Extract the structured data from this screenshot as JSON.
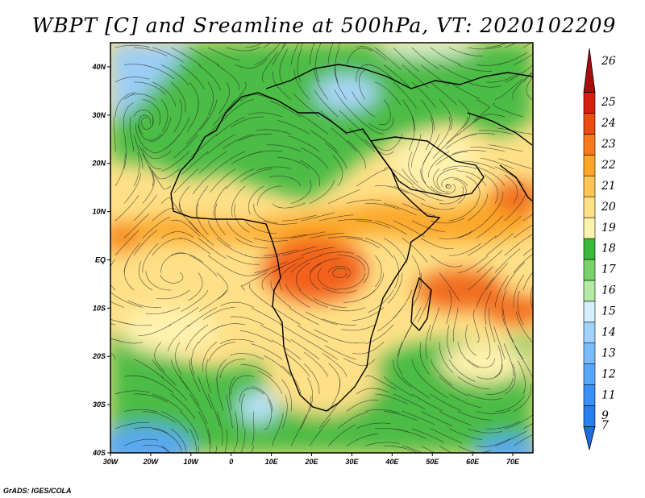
{
  "title": "WBPT [C] and Sreamline at 500hPa, VT: 2020102209",
  "credit": "GrADS: IGES/COLA",
  "map": {
    "lon_range": [
      -30,
      75
    ],
    "lat_range": [
      -40,
      45
    ],
    "lon_ticks": [
      {
        "value": -30,
        "label": "30W"
      },
      {
        "value": -20,
        "label": "20W"
      },
      {
        "value": -10,
        "label": "10W"
      },
      {
        "value": 0,
        "label": "0"
      },
      {
        "value": 10,
        "label": "10E"
      },
      {
        "value": 20,
        "label": "20E"
      },
      {
        "value": 30,
        "label": "30E"
      },
      {
        "value": 40,
        "label": "40E"
      },
      {
        "value": 50,
        "label": "50E"
      },
      {
        "value": 60,
        "label": "60E"
      },
      {
        "value": 70,
        "label": "70E"
      }
    ],
    "lat_ticks": [
      {
        "value": 40,
        "label": "40N"
      },
      {
        "value": 30,
        "label": "30N"
      },
      {
        "value": 20,
        "label": "20N"
      },
      {
        "value": 10,
        "label": "10N"
      },
      {
        "value": 0,
        "label": "EQ"
      },
      {
        "value": -10,
        "label": "10S"
      },
      {
        "value": -20,
        "label": "20S"
      },
      {
        "value": -30,
        "label": "30S"
      },
      {
        "value": -40,
        "label": "40S"
      }
    ]
  },
  "colorbar": {
    "levels": [
      {
        "label": "7",
        "color": "#1e6ee0"
      },
      {
        "label": "9",
        "color": "#2a7ef0"
      },
      {
        "label": "11",
        "color": "#3a90f6"
      },
      {
        "label": "12",
        "color": "#58a6f8"
      },
      {
        "label": "13",
        "color": "#78bcfa"
      },
      {
        "label": "14",
        "color": "#a0d2fc"
      },
      {
        "label": "15",
        "color": "#d4eefe"
      },
      {
        "label": "16",
        "color": "#b4eaa6"
      },
      {
        "label": "17",
        "color": "#78d36a"
      },
      {
        "label": "18",
        "color": "#3cb83c"
      },
      {
        "label": "19",
        "color": "#fff2ae"
      },
      {
        "label": "20",
        "color": "#fee088"
      },
      {
        "label": "21",
        "color": "#fec456"
      },
      {
        "label": "22",
        "color": "#fca628"
      },
      {
        "label": "23",
        "color": "#f8781c"
      },
      {
        "label": "24",
        "color": "#ee4a14"
      },
      {
        "label": "25",
        "color": "#d42010"
      },
      {
        "label": "26",
        "color": "#a80c0a"
      }
    ]
  }
}
